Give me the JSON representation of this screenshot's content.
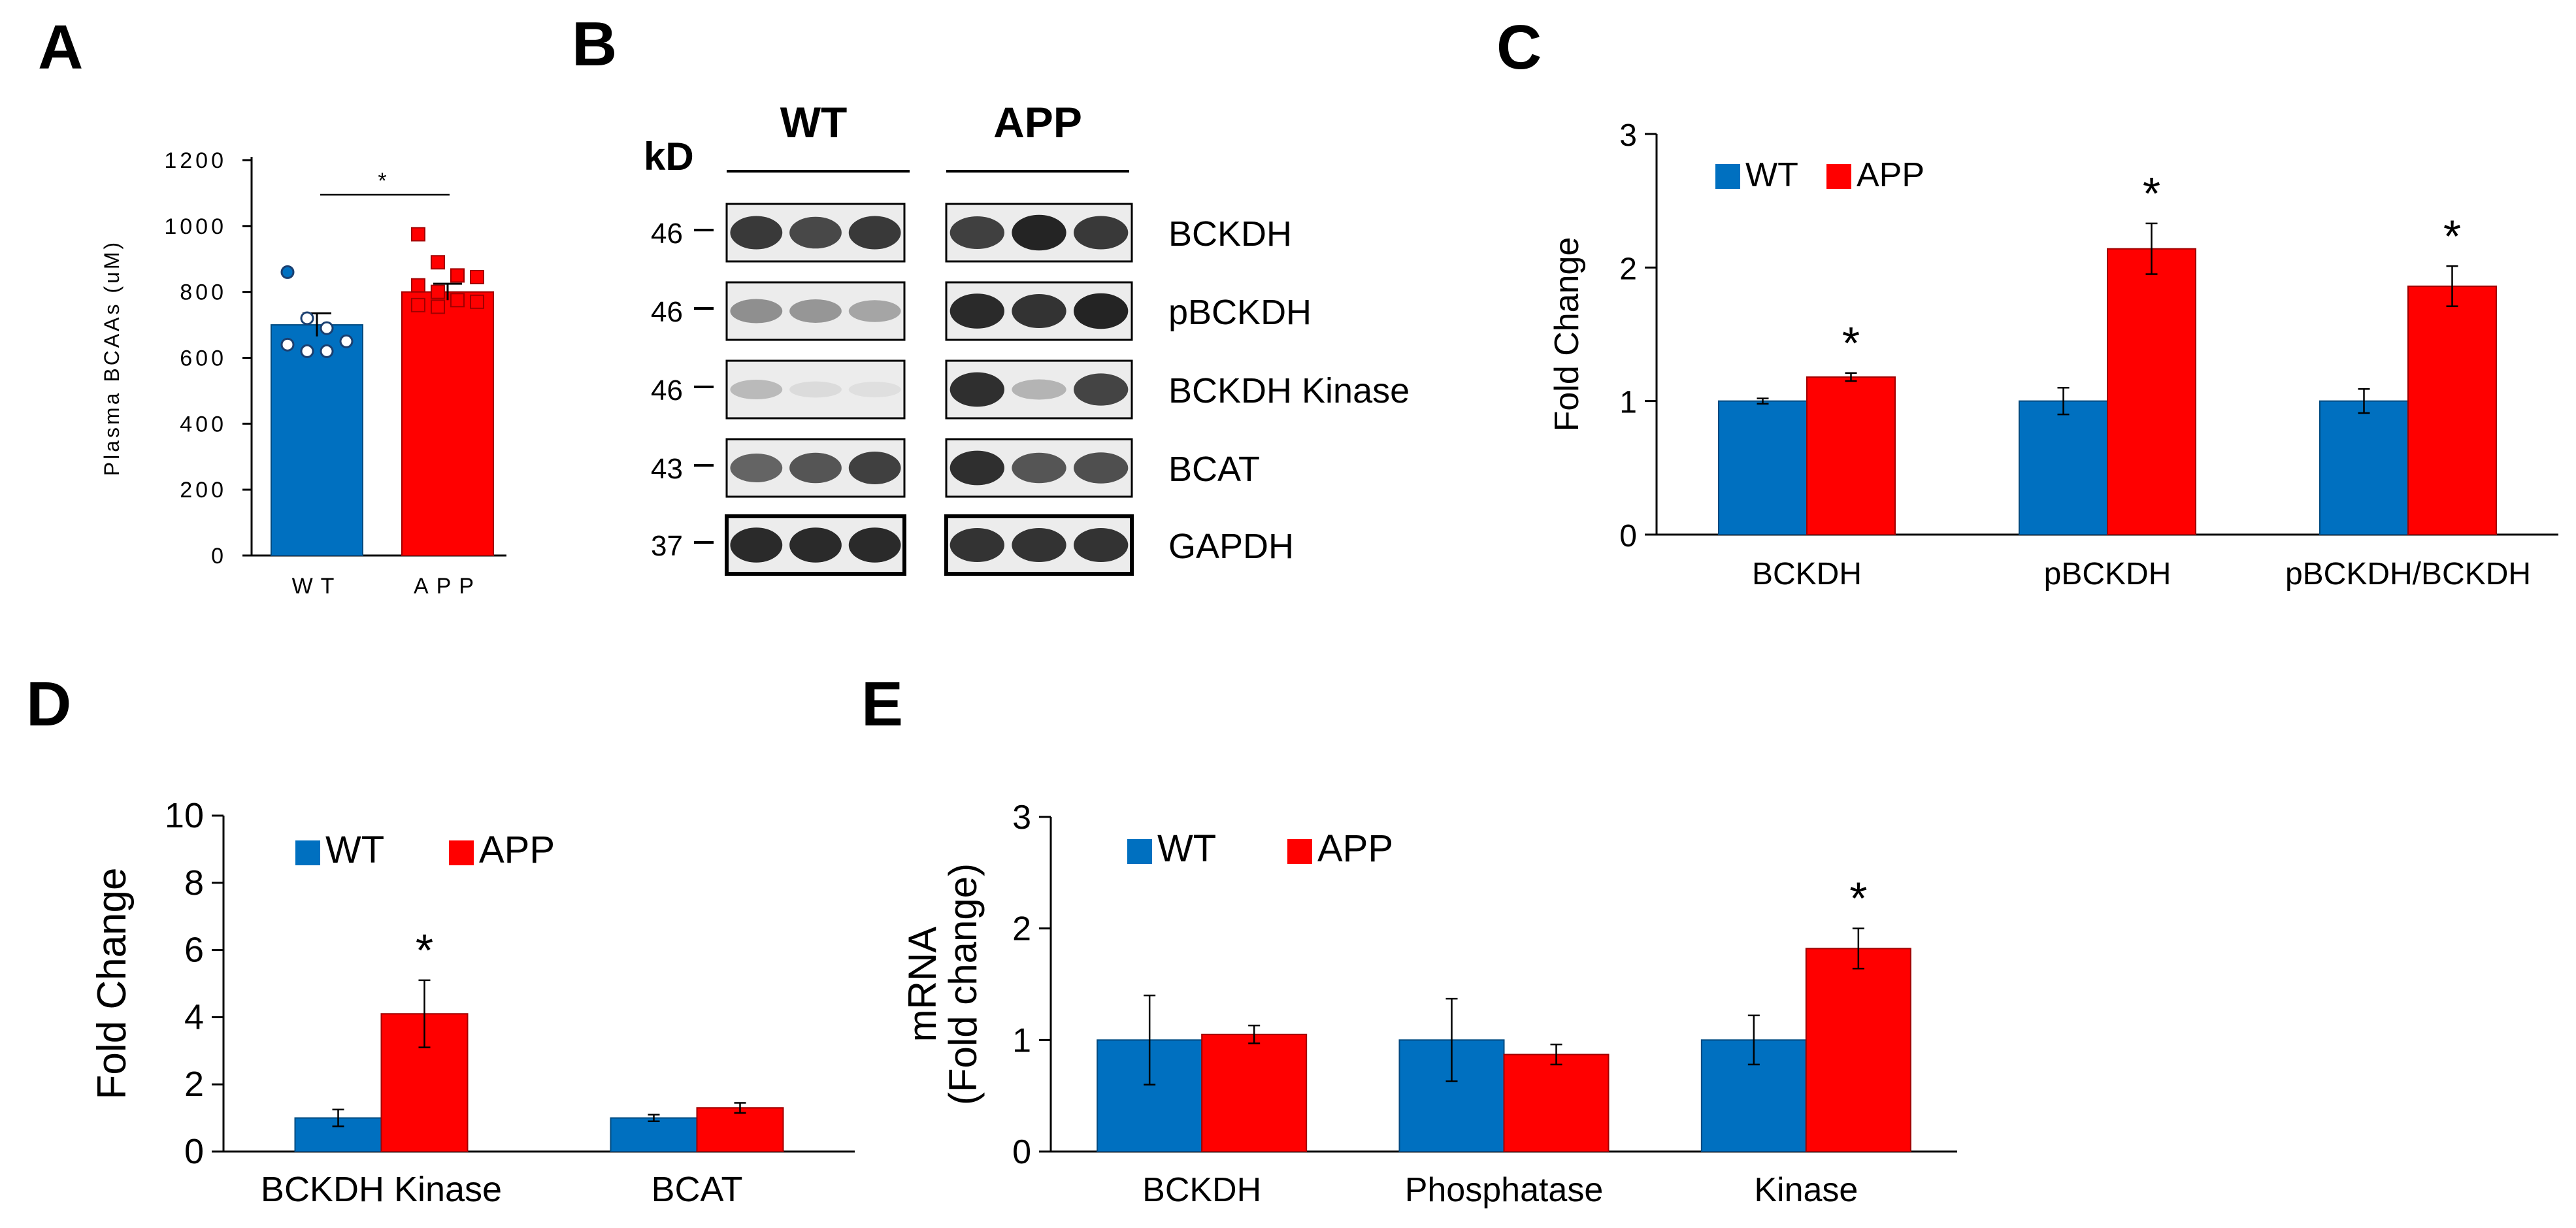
{
  "colors": {
    "wt": "#0070C0",
    "app": "#FF0000",
    "wt_dark": "#004a80",
    "app_dark": "#a00000"
  },
  "chart_data": [
    {
      "panel": "A",
      "type": "bar",
      "ylabel": "Plasma BCAAs (uM)",
      "ylim": [
        0,
        1200
      ],
      "yticks": [
        "0",
        "200",
        "400",
        "600",
        "800",
        "1000",
        "1200"
      ],
      "categories": [
        "WT",
        "APP"
      ],
      "values": [
        700,
        800
      ],
      "errors": [
        35,
        25
      ],
      "points": [
        [
          860,
          720,
          690,
          650,
          640,
          620,
          620
        ],
        [
          975,
          890,
          850,
          845,
          820,
          800,
          775,
          770,
          760,
          755
        ]
      ],
      "significance": "*"
    },
    {
      "panel": "B",
      "type": "blot",
      "unit_label": "kD",
      "groups": [
        "WT",
        "APP"
      ],
      "rows": [
        {
          "mw": "46",
          "label": "BCKDH",
          "wt": [
            0.85,
            0.78,
            0.85
          ],
          "app": [
            0.82,
            0.95,
            0.85
          ]
        },
        {
          "mw": "46",
          "label": "pBCKDH",
          "wt": [
            0.45,
            0.42,
            0.35
          ],
          "app": [
            0.92,
            0.88,
            0.95
          ]
        },
        {
          "mw": "46",
          "label": "BCKDH Kinase",
          "wt": [
            0.25,
            0.1,
            0.08
          ],
          "app": [
            0.9,
            0.28,
            0.8
          ]
        },
        {
          "mw": "43",
          "label": "BCAT",
          "wt": [
            0.65,
            0.72,
            0.82
          ],
          "app": [
            0.9,
            0.72,
            0.75
          ]
        },
        {
          "mw": "37",
          "label": "GAPDH",
          "wt": [
            0.92,
            0.92,
            0.92
          ],
          "app": [
            0.88,
            0.88,
            0.88
          ]
        }
      ]
    },
    {
      "panel": "C",
      "type": "bar",
      "ylabel": "Fold Change",
      "ylim": [
        0,
        3
      ],
      "yticks": [
        "0",
        "1",
        "2",
        "3"
      ],
      "categories": [
        "BCKDH",
        "pBCKDH",
        "pBCKDH/BCKDH"
      ],
      "series": [
        {
          "name": "WT",
          "values": [
            1.0,
            1.0,
            1.0
          ],
          "errors": [
            0.02,
            0.1,
            0.09
          ]
        },
        {
          "name": "APP",
          "values": [
            1.18,
            2.14,
            1.86
          ],
          "errors": [
            0.03,
            0.19,
            0.15
          ]
        }
      ],
      "significance": [
        "*",
        "*",
        "*"
      ]
    },
    {
      "panel": "D",
      "type": "bar",
      "ylabel": "Fold Change",
      "ylim": [
        0,
        10
      ],
      "yticks": [
        "0",
        "2",
        "4",
        "6",
        "8",
        "10"
      ],
      "categories": [
        "BCKDH Kinase",
        "BCAT"
      ],
      "series": [
        {
          "name": "WT",
          "values": [
            1.0,
            1.0
          ],
          "errors": [
            0.25,
            0.1
          ]
        },
        {
          "name": "APP",
          "values": [
            4.1,
            1.3
          ],
          "errors": [
            1.0,
            0.15
          ]
        }
      ],
      "significance": [
        "*",
        ""
      ]
    },
    {
      "panel": "E",
      "type": "bar",
      "ylabel": "mRNA",
      "ylabel2": "(Fold change)",
      "ylim": [
        0,
        3
      ],
      "yticks": [
        "0",
        "1",
        "2",
        "3"
      ],
      "categories": [
        "BCKDH",
        "Phosphatase",
        "Kinase"
      ],
      "series": [
        {
          "name": "WT",
          "values": [
            1.0,
            1.0,
            1.0
          ],
          "errors": [
            0.4,
            0.37,
            0.22
          ]
        },
        {
          "name": "APP",
          "values": [
            1.05,
            0.87,
            1.82
          ],
          "errors": [
            0.08,
            0.09,
            0.18
          ]
        }
      ],
      "significance": [
        "",
        "",
        "*"
      ]
    }
  ]
}
